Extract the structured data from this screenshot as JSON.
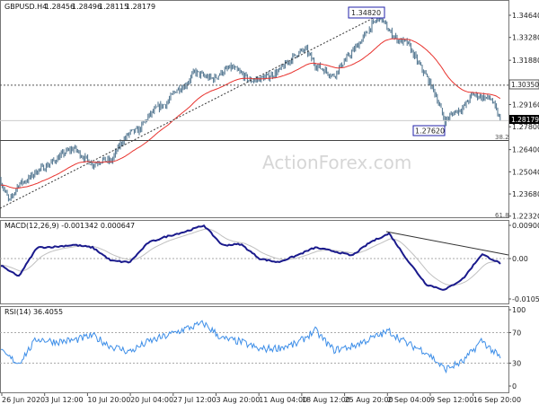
{
  "header": {
    "symbol": "GBPUSD.H4",
    "open": "1.28456",
    "high": "1.28496",
    "low": "1.28115",
    "close": "1.28179"
  },
  "watermark": "ActionForex.com",
  "colors": {
    "bars": "#4a6f8a",
    "ma": "#e8332e",
    "macd": "#1a1a8c",
    "signal": "#c0c0c0",
    "rsi": "#3d8ee8",
    "annotation_box": "#2222aa"
  },
  "chart_data": [
    {
      "type": "line",
      "name_label": "GBPUSD.H4",
      "ylim": [
        1.2232,
        1.3464
      ],
      "y_ticks": [
        "1.34640",
        "1.33280",
        "1.31880",
        "1.30350",
        "1.29160",
        "1.28179",
        "1.27800",
        "1.26400",
        "1.25040",
        "1.23680",
        "1.22320"
      ],
      "x_ticks": [
        "26 Jun 2020",
        "3 Jul 12:00",
        "10 Jul 20:00",
        "20 Jul 04:00",
        "27 Jul 12:00",
        "3 Aug 20:00",
        "11 Aug 04:00",
        "18 Aug 12:00",
        "25 Aug 20:00",
        "2 Sep 04:00",
        "9 Sep 12:00",
        "16 Sep 20:00"
      ],
      "close_approx": [
        1.2456,
        1.2319,
        1.2429,
        1.2456,
        1.2511,
        1.2539,
        1.2578,
        1.2622,
        1.2649,
        1.2594,
        1.255,
        1.2578,
        1.2567,
        1.2677,
        1.2743,
        1.2759,
        1.2842,
        1.2897,
        1.2924,
        1.3007,
        1.3034,
        1.3117,
        1.309,
        1.3073,
        1.3117,
        1.3145,
        1.3106,
        1.3062,
        1.3073,
        1.309,
        1.3117,
        1.3172,
        1.3227,
        1.3255,
        1.3161,
        1.3128,
        1.309,
        1.3172,
        1.3238,
        1.331,
        1.3392,
        1.3458,
        1.3365,
        1.331,
        1.3293,
        1.3183,
        1.309,
        1.298,
        1.2814,
        1.2869,
        1.2897,
        1.298,
        1.2963,
        1.2952,
        1.2818
      ],
      "annotations": {
        "high_label": "1.34820",
        "low_label": "1.27620",
        "resistance_label": "1.30350",
        "current_price_label": "1.28179",
        "fib_382": "38.2",
        "fib_618": "61.8",
        "resistance": 1.3035,
        "fib_382_level": 1.2688,
        "fib_618_level": 1.2232,
        "high": 1.3482,
        "low": 1.2762,
        "current": 1.28179
      }
    },
    {
      "type": "line",
      "title": "MACD(12,26,9) -0.001342 0.000647",
      "y_ticks": [
        "0.009003",
        "0.00",
        "-0.010566"
      ],
      "ylim": [
        -0.010566,
        0.009003
      ],
      "macd_approx": [
        -0.0017,
        -0.0049,
        0.003,
        0.0032,
        0.0037,
        0.003,
        -0.0006,
        -0.001,
        0.0043,
        0.006,
        0.0073,
        0.009,
        0.0036,
        0.0039,
        0.0,
        -0.001,
        0.0008,
        0.003,
        0.002,
        0.0008,
        0.0045,
        0.0068,
        -0.0005,
        -0.007,
        -0.0085,
        -0.0054,
        0.0012,
        -0.0013
      ]
    },
    {
      "type": "line",
      "title": "RSI(14) 36.4055",
      "y_ticks": [
        "100",
        "70",
        "30",
        "0"
      ],
      "ylim": [
        0,
        100
      ],
      "rsi_approx": [
        45,
        30,
        62,
        58,
        60,
        66,
        52,
        45,
        58,
        66,
        75,
        82,
        62,
        58,
        48,
        50,
        55,
        73,
        47,
        52,
        62,
        72,
        55,
        45,
        22,
        32,
        60,
        36.4
      ]
    }
  ]
}
